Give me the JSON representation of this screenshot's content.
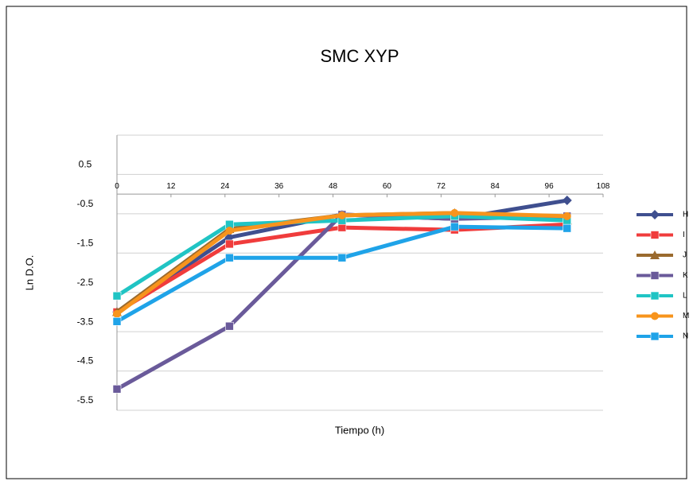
{
  "chart_data": {
    "type": "line",
    "title": "SMC XYP",
    "x_label": "Tiempo (h)",
    "y_label": "Ln D.O.",
    "x": [
      0,
      25,
      50,
      75,
      100
    ],
    "series": [
      {
        "name": "H",
        "color": "#3f4f8f",
        "marker": "diamond",
        "values": [
          -3.0,
          -1.1,
          -0.52,
          -0.63,
          -0.16
        ]
      },
      {
        "name": "I",
        "color": "#f03c3c",
        "marker": "square",
        "values": [
          -3.0,
          -1.27,
          -0.85,
          -0.91,
          -0.77
        ]
      },
      {
        "name": "J",
        "color": "#9a6a2e",
        "marker": "triangle",
        "values": [
          -3.0,
          -0.89,
          -0.54,
          -0.48,
          -0.67
        ]
      },
      {
        "name": "K",
        "color": "#6a5a9a",
        "marker": "square",
        "values": [
          -4.96,
          -3.36,
          -0.52,
          -0.63,
          -0.56
        ]
      },
      {
        "name": "L",
        "color": "#20c4c4",
        "marker": "square",
        "values": [
          -2.59,
          -0.77,
          -0.67,
          -0.56,
          -0.67
        ]
      },
      {
        "name": "M",
        "color": "#f7941d",
        "marker": "circle",
        "values": [
          -3.05,
          -0.93,
          -0.54,
          -0.48,
          -0.56
        ]
      },
      {
        "name": "N",
        "color": "#1fa3e8",
        "marker": "square",
        "values": [
          -3.24,
          -1.62,
          -1.62,
          -0.83,
          -0.87
        ]
      }
    ],
    "xlim": [
      0,
      108
    ],
    "xticks": [
      0,
      12,
      24,
      36,
      48,
      60,
      72,
      84,
      96,
      108
    ],
    "ylim": [
      -5.5,
      1.5
    ],
    "yticks": [
      -5.5,
      -4.5,
      -3.5,
      -2.5,
      -1.5,
      -0.5,
      0.5
    ],
    "grid": true,
    "legend": "right"
  }
}
